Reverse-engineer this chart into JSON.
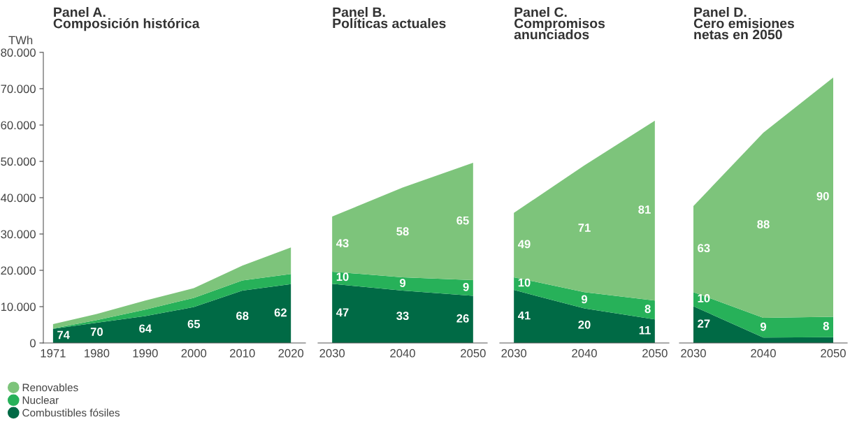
{
  "chart_data": [
    {
      "type": "area",
      "stacked": true,
      "title": "Panel A.\nComposición histórica",
      "ylabel": "TWh",
      "x": [
        1971,
        1980,
        1990,
        2000,
        2010,
        2020
      ],
      "xlim": [
        1969,
        2023
      ],
      "xticks": [
        1971,
        1980,
        1990,
        2000,
        2010,
        2020
      ],
      "ylim": [
        0,
        80000
      ],
      "yticks": [
        {
          "value": 0,
          "label": "0"
        },
        {
          "value": 10000,
          "label": "10.000"
        },
        {
          "value": 20000,
          "label": "20.000"
        },
        {
          "value": 30000,
          "label": "30.000"
        },
        {
          "value": 40000,
          "label": "40.000"
        },
        {
          "value": 50000,
          "label": "50.000"
        },
        {
          "value": 60000,
          "label": "60.000"
        },
        {
          "value": 70000,
          "label": "70.000"
        },
        {
          "value": 80000,
          "label": "80.000"
        }
      ],
      "legend": "bottom left",
      "grid": false,
      "series": [
        {
          "name": "Combustibles fósiles",
          "color": "#006a45",
          "values": [
            3900,
            5600,
            7400,
            9900,
            14400,
            16200
          ]
        },
        {
          "name": "Nuclear",
          "color": "#27b159",
          "values": [
            100,
            700,
            1800,
            2500,
            2800,
            2800
          ]
        },
        {
          "name": "Renovables",
          "color": "#7dc47b",
          "values": [
            1200,
            1700,
            2500,
            2700,
            4100,
            7300
          ]
        }
      ],
      "annotations": [
        "74",
        "70",
        "64",
        "65",
        "68",
        "62"
      ]
    },
    {
      "type": "area",
      "stacked": true,
      "title": "Panel B.\nPolíticas actuales",
      "x": [
        2030,
        2040,
        2050
      ],
      "xlim": [
        2028,
        2052
      ],
      "xticks": [
        2030,
        2040,
        2050
      ],
      "ylim": [
        0,
        80000
      ],
      "tick_labels": "x",
      "legend": false,
      "grid": false,
      "series": [
        {
          "color": "#006a45",
          "values": [
            16300,
            14400,
            13000
          ]
        },
        {
          "color": "#27b159",
          "values": [
            3300,
            3700,
            4300
          ]
        },
        {
          "color": "#7dc47b",
          "values": [
            15200,
            24700,
            32300
          ]
        }
      ],
      "annotations": [
        "47",
        "33",
        "26",
        "10",
        "9",
        "9",
        "43",
        "58",
        "65"
      ]
    },
    {
      "type": "area",
      "stacked": true,
      "title": "Panel C.\nCompromisos\nanunciados",
      "x": [
        2030,
        2040,
        2050
      ],
      "xlim": [
        2028,
        2052
      ],
      "xticks": [
        2030,
        2040,
        2050
      ],
      "ylim": [
        0,
        80000
      ],
      "tick_labels": "x",
      "legend": false,
      "grid": false,
      "series": [
        {
          "color": "#006a45",
          "values": [
            14600,
            9500,
            6500
          ]
        },
        {
          "color": "#27b159",
          "values": [
            3500,
            4500,
            5200
          ]
        },
        {
          "color": "#7dc47b",
          "values": [
            17700,
            34900,
            49500
          ]
        }
      ],
      "annotations": [
        "41",
        "20",
        "11",
        "10",
        "9",
        "8",
        "49",
        "71",
        "81"
      ]
    },
    {
      "type": "area",
      "stacked": true,
      "title": "Panel D.\nCero emisiones\nnetas en 2050",
      "x": [
        2030,
        2040,
        2050
      ],
      "xlim": [
        2028,
        2052
      ],
      "xticks": [
        2030,
        2040,
        2050
      ],
      "ylim": [
        0,
        80000
      ],
      "tick_labels": "x",
      "legend": false,
      "grid": false,
      "series": [
        {
          "color": "#006a45",
          "values": [
            10100,
            1500,
            1600
          ]
        },
        {
          "color": "#27b159",
          "values": [
            3900,
            5400,
            5600
          ]
        },
        {
          "color": "#7dc47b",
          "values": [
            23700,
            51000,
            65900
          ]
        }
      ],
      "annotations": [
        "27",
        "10",
        "9",
        "8",
        "63",
        "88",
        "90"
      ]
    }
  ]
}
